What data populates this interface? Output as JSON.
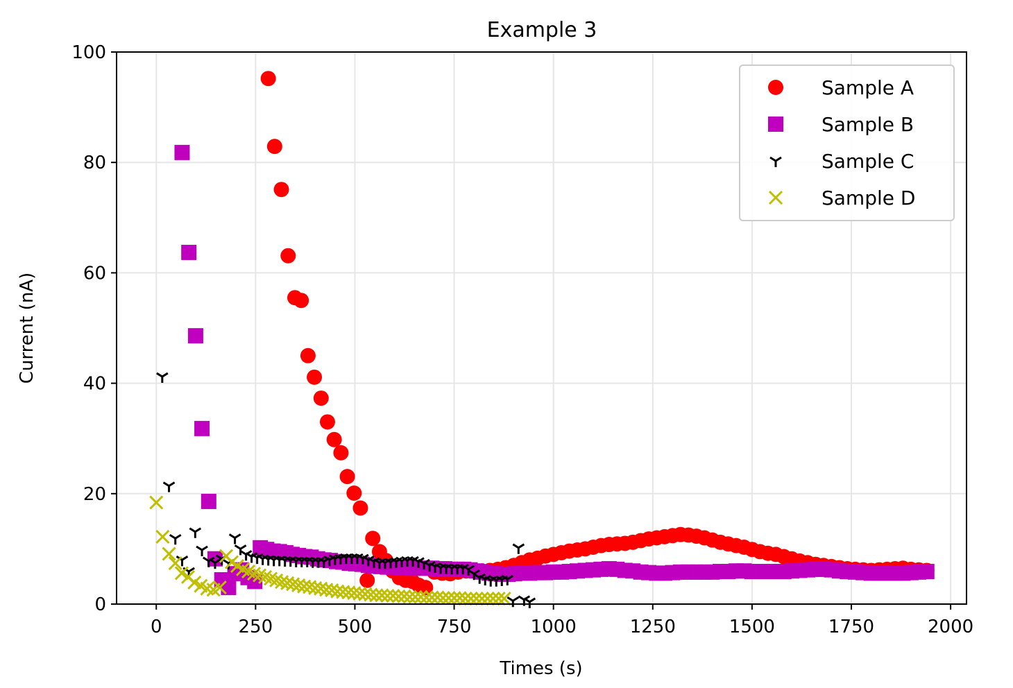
{
  "chart_data": {
    "type": "scatter",
    "title": "Example 3",
    "xlabel": "Times (s)",
    "ylabel": "Current (nA)",
    "xlim": [
      -100,
      2040
    ],
    "ylim": [
      0,
      100
    ],
    "xticks": [
      0,
      250,
      500,
      750,
      1000,
      1250,
      1500,
      1750,
      2000
    ],
    "yticks": [
      0,
      20,
      40,
      60,
      80,
      100
    ],
    "grid": true,
    "legend_position": "top-right",
    "series": [
      {
        "name": "Sample A",
        "marker": "circle",
        "color": "#ff0000",
        "points": [
          [
            282,
            95.2
          ],
          [
            298,
            82.9
          ],
          [
            315,
            75.1
          ],
          [
            332,
            63.1
          ],
          [
            349,
            55.5
          ],
          [
            365,
            55.0
          ],
          [
            382,
            45.0
          ],
          [
            398,
            41.1
          ],
          [
            415,
            37.3
          ],
          [
            431,
            33.0
          ],
          [
            448,
            29.8
          ],
          [
            465,
            27.4
          ],
          [
            481,
            23.1
          ],
          [
            498,
            20.1
          ],
          [
            514,
            17.4
          ],
          [
            531,
            4.3
          ],
          [
            545,
            11.9
          ],
          [
            562,
            9.5
          ],
          [
            578,
            7.9
          ],
          [
            595,
            6.0
          ],
          [
            612,
            4.8
          ],
          [
            628,
            4.3
          ],
          [
            645,
            4.1
          ],
          [
            661,
            3.4
          ],
          [
            678,
            3.0
          ],
          [
            700,
            5.8
          ],
          [
            720,
            5.6
          ],
          [
            740,
            5.5
          ],
          [
            760,
            5.8
          ],
          [
            780,
            6.0
          ],
          [
            800,
            6.1
          ],
          [
            820,
            6.0
          ],
          [
            840,
            6.1
          ],
          [
            860,
            6.3
          ],
          [
            880,
            6.6
          ],
          [
            900,
            7.0
          ],
          [
            920,
            7.5
          ],
          [
            940,
            8.0
          ],
          [
            960,
            8.3
          ],
          [
            980,
            8.7
          ],
          [
            1000,
            9.0
          ],
          [
            1020,
            9.3
          ],
          [
            1040,
            9.6
          ],
          [
            1060,
            9.8
          ],
          [
            1080,
            10.0
          ],
          [
            1100,
            10.3
          ],
          [
            1120,
            10.6
          ],
          [
            1140,
            10.8
          ],
          [
            1160,
            10.9
          ],
          [
            1180,
            11.0
          ],
          [
            1200,
            11.2
          ],
          [
            1220,
            11.5
          ],
          [
            1240,
            11.8
          ],
          [
            1260,
            12.0
          ],
          [
            1280,
            12.2
          ],
          [
            1300,
            12.4
          ],
          [
            1320,
            12.6
          ],
          [
            1340,
            12.5
          ],
          [
            1360,
            12.3
          ],
          [
            1380,
            12.0
          ],
          [
            1400,
            11.6
          ],
          [
            1420,
            11.2
          ],
          [
            1440,
            10.9
          ],
          [
            1460,
            10.6
          ],
          [
            1480,
            10.3
          ],
          [
            1500,
            9.9
          ],
          [
            1520,
            9.5
          ],
          [
            1540,
            9.2
          ],
          [
            1560,
            9.0
          ],
          [
            1580,
            8.6
          ],
          [
            1600,
            8.2
          ],
          [
            1620,
            7.8
          ],
          [
            1640,
            7.5
          ],
          [
            1660,
            7.2
          ],
          [
            1680,
            7.0
          ],
          [
            1700,
            6.8
          ],
          [
            1720,
            6.6
          ],
          [
            1740,
            6.4
          ],
          [
            1760,
            6.3
          ],
          [
            1780,
            6.2
          ],
          [
            1800,
            6.1
          ],
          [
            1820,
            6.2
          ],
          [
            1840,
            6.3
          ],
          [
            1860,
            6.4
          ],
          [
            1880,
            6.5
          ],
          [
            1900,
            6.3
          ],
          [
            1920,
            6.2
          ],
          [
            1940,
            6.1
          ]
        ]
      },
      {
        "name": "Sample B",
        "marker": "square",
        "color": "#bf00bf",
        "points": [
          [
            65,
            81.8
          ],
          [
            82,
            63.7
          ],
          [
            99,
            48.6
          ],
          [
            115,
            31.8
          ],
          [
            132,
            18.6
          ],
          [
            148,
            8.2
          ],
          [
            165,
            4.4
          ],
          [
            182,
            3.0
          ],
          [
            198,
            5.5
          ],
          [
            215,
            6.2
          ],
          [
            231,
            4.8
          ],
          [
            248,
            4.1
          ],
          [
            262,
            10.2
          ],
          [
            278,
            9.9
          ],
          [
            294,
            9.6
          ],
          [
            310,
            9.5
          ],
          [
            326,
            9.3
          ],
          [
            342,
            9.0
          ],
          [
            358,
            8.8
          ],
          [
            374,
            8.6
          ],
          [
            390,
            8.5
          ],
          [
            406,
            8.2
          ],
          [
            422,
            8.0
          ],
          [
            438,
            7.9
          ],
          [
            454,
            7.7
          ],
          [
            470,
            7.6
          ],
          [
            486,
            7.4
          ],
          [
            502,
            7.3
          ],
          [
            518,
            7.2
          ],
          [
            534,
            7.0
          ],
          [
            550,
            6.9
          ],
          [
            566,
            6.8
          ],
          [
            582,
            6.7
          ],
          [
            598,
            6.7
          ],
          [
            614,
            6.6
          ],
          [
            630,
            6.6
          ],
          [
            646,
            6.5
          ],
          [
            662,
            6.5
          ],
          [
            678,
            6.5
          ],
          [
            694,
            6.5
          ],
          [
            710,
            6.4
          ],
          [
            726,
            6.4
          ],
          [
            742,
            6.3
          ],
          [
            758,
            6.3
          ],
          [
            774,
            6.3
          ],
          [
            790,
            6.2
          ],
          [
            806,
            6.0
          ],
          [
            822,
            5.8
          ],
          [
            838,
            5.6
          ],
          [
            854,
            5.5
          ],
          [
            870,
            5.4
          ],
          [
            886,
            5.4
          ],
          [
            902,
            5.5
          ],
          [
            920,
            5.6
          ],
          [
            940,
            5.6
          ],
          [
            960,
            5.7
          ],
          [
            980,
            5.7
          ],
          [
            1000,
            5.8
          ],
          [
            1020,
            5.8
          ],
          [
            1040,
            5.9
          ],
          [
            1060,
            6.0
          ],
          [
            1080,
            6.1
          ],
          [
            1100,
            6.2
          ],
          [
            1120,
            6.3
          ],
          [
            1140,
            6.4
          ],
          [
            1160,
            6.3
          ],
          [
            1180,
            6.1
          ],
          [
            1200,
            6.0
          ],
          [
            1220,
            5.8
          ],
          [
            1240,
            5.7
          ],
          [
            1260,
            5.6
          ],
          [
            1280,
            5.6
          ],
          [
            1300,
            5.7
          ],
          [
            1320,
            5.8
          ],
          [
            1340,
            5.8
          ],
          [
            1360,
            5.8
          ],
          [
            1380,
            5.8
          ],
          [
            1400,
            5.8
          ],
          [
            1420,
            5.9
          ],
          [
            1440,
            5.9
          ],
          [
            1460,
            6.0
          ],
          [
            1480,
            6.0
          ],
          [
            1500,
            5.9
          ],
          [
            1520,
            5.9
          ],
          [
            1540,
            5.9
          ],
          [
            1560,
            5.9
          ],
          [
            1580,
            5.9
          ],
          [
            1600,
            6.0
          ],
          [
            1620,
            6.1
          ],
          [
            1640,
            6.2
          ],
          [
            1660,
            6.3
          ],
          [
            1680,
            6.3
          ],
          [
            1700,
            6.2
          ],
          [
            1720,
            6.0
          ],
          [
            1740,
            5.9
          ],
          [
            1760,
            5.8
          ],
          [
            1780,
            5.7
          ],
          [
            1800,
            5.6
          ],
          [
            1820,
            5.6
          ],
          [
            1840,
            5.6
          ],
          [
            1860,
            5.6
          ],
          [
            1880,
            5.6
          ],
          [
            1900,
            5.7
          ],
          [
            1920,
            5.8
          ],
          [
            1940,
            5.9
          ]
        ]
      },
      {
        "name": "Sample C",
        "marker": "tri_down",
        "color": "#000000",
        "points": [
          [
            15,
            41.2
          ],
          [
            32,
            21.4
          ],
          [
            48,
            11.9
          ],
          [
            65,
            8.0
          ],
          [
            82,
            5.9
          ],
          [
            98,
            13.1
          ],
          [
            115,
            9.8
          ],
          [
            132,
            7.8
          ],
          [
            148,
            7.5
          ],
          [
            165,
            8.2
          ],
          [
            182,
            7.4
          ],
          [
            198,
            12.0
          ],
          [
            212,
            10.0
          ],
          [
            226,
            9.0
          ],
          [
            240,
            8.6
          ],
          [
            254,
            8.4
          ],
          [
            268,
            8.2
          ],
          [
            282,
            8.1
          ],
          [
            296,
            8.0
          ],
          [
            310,
            8.0
          ],
          [
            324,
            7.9
          ],
          [
            338,
            7.9
          ],
          [
            352,
            7.8
          ],
          [
            366,
            7.8
          ],
          [
            380,
            7.8
          ],
          [
            394,
            7.7
          ],
          [
            408,
            7.7
          ],
          [
            422,
            7.7
          ],
          [
            436,
            8.0
          ],
          [
            450,
            8.2
          ],
          [
            464,
            8.3
          ],
          [
            478,
            8.4
          ],
          [
            492,
            8.4
          ],
          [
            506,
            8.4
          ],
          [
            520,
            8.3
          ],
          [
            534,
            8.0
          ],
          [
            548,
            7.7
          ],
          [
            562,
            7.5
          ],
          [
            576,
            7.5
          ],
          [
            590,
            7.6
          ],
          [
            604,
            7.7
          ],
          [
            618,
            7.8
          ],
          [
            632,
            7.9
          ],
          [
            646,
            7.9
          ],
          [
            660,
            7.7
          ],
          [
            674,
            7.4
          ],
          [
            688,
            7.0
          ],
          [
            702,
            6.8
          ],
          [
            716,
            6.6
          ],
          [
            730,
            6.6
          ],
          [
            744,
            6.5
          ],
          [
            758,
            6.5
          ],
          [
            772,
            6.5
          ],
          [
            786,
            6.3
          ],
          [
            800,
            5.5
          ],
          [
            814,
            4.8
          ],
          [
            828,
            4.5
          ],
          [
            842,
            4.3
          ],
          [
            856,
            4.3
          ],
          [
            870,
            4.4
          ],
          [
            884,
            4.5
          ],
          [
            898,
            0.6
          ],
          [
            912,
            10.2
          ],
          [
            926,
            0.8
          ],
          [
            940,
            0.4
          ]
        ]
      },
      {
        "name": "Sample D",
        "marker": "x",
        "color": "#bfbf00",
        "points": [
          [
            0,
            18.4
          ],
          [
            16,
            12.2
          ],
          [
            32,
            9.1
          ],
          [
            48,
            7.4
          ],
          [
            64,
            5.6
          ],
          [
            80,
            4.9
          ],
          [
            96,
            3.9
          ],
          [
            112,
            3.3
          ],
          [
            128,
            2.8
          ],
          [
            144,
            2.6
          ],
          [
            160,
            3.0
          ],
          [
            176,
            8.7
          ],
          [
            190,
            7.6
          ],
          [
            204,
            6.9
          ],
          [
            218,
            6.3
          ],
          [
            232,
            5.9
          ],
          [
            246,
            5.5
          ],
          [
            260,
            5.2
          ],
          [
            274,
            4.9
          ],
          [
            288,
            4.6
          ],
          [
            302,
            4.3
          ],
          [
            316,
            4.0
          ],
          [
            330,
            3.8
          ],
          [
            344,
            3.6
          ],
          [
            358,
            3.4
          ],
          [
            372,
            3.2
          ],
          [
            386,
            3.1
          ],
          [
            400,
            2.9
          ],
          [
            414,
            2.8
          ],
          [
            428,
            2.6
          ],
          [
            442,
            2.5
          ],
          [
            456,
            2.3
          ],
          [
            470,
            2.2
          ],
          [
            484,
            2.1
          ],
          [
            498,
            2.0
          ],
          [
            512,
            1.9
          ],
          [
            526,
            1.8
          ],
          [
            540,
            1.7
          ],
          [
            554,
            1.6
          ],
          [
            568,
            1.6
          ],
          [
            582,
            1.5
          ],
          [
            596,
            1.5
          ],
          [
            610,
            1.4
          ],
          [
            624,
            1.4
          ],
          [
            638,
            1.3
          ],
          [
            652,
            1.3
          ],
          [
            666,
            1.3
          ],
          [
            680,
            1.2
          ],
          [
            694,
            1.2
          ],
          [
            708,
            1.2
          ],
          [
            722,
            1.1
          ],
          [
            736,
            1.1
          ],
          [
            750,
            1.1
          ],
          [
            764,
            1.1
          ],
          [
            778,
            1.0
          ],
          [
            792,
            1.0
          ],
          [
            806,
            1.0
          ],
          [
            820,
            1.0
          ],
          [
            834,
            1.0
          ],
          [
            848,
            1.0
          ],
          [
            862,
            1.0
          ],
          [
            876,
            1.0
          ]
        ]
      }
    ]
  }
}
